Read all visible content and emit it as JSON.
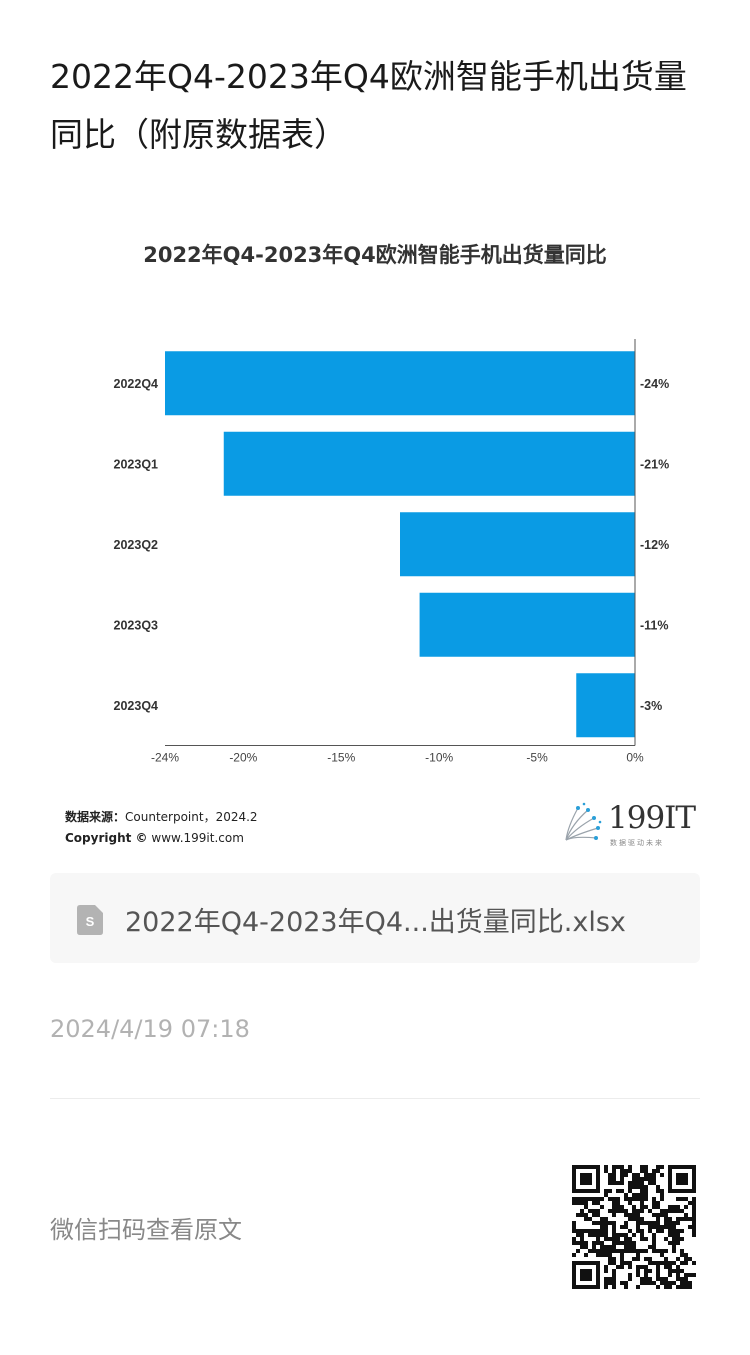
{
  "article": {
    "title": "2022年Q4-2023年Q4欧洲智能手机出货量同比（附原数据表）"
  },
  "chart_data": {
    "type": "bar",
    "orientation": "horizontal",
    "title": "2022年Q4-2023年Q4欧洲智能手机出货量同比",
    "categories": [
      "2022Q4",
      "2023Q1",
      "2023Q2",
      "2023Q3",
      "2023Q4"
    ],
    "values": [
      -24,
      -21,
      -12,
      -11,
      -3
    ],
    "value_labels": [
      "-24%",
      "-21%",
      "-12%",
      "-11%",
      "-3%"
    ],
    "x_ticks": [
      -24,
      -20,
      -15,
      -10,
      -5,
      0
    ],
    "x_tick_labels": [
      "-24%",
      "-20%",
      "-15%",
      "-10%",
      "-5%",
      "0%"
    ],
    "xlim": [
      -24,
      0
    ],
    "bar_color": "#0a9be4",
    "grid": false
  },
  "source": {
    "label": "数据来源：",
    "value": "Counterpoint，2024.2",
    "copyright_label": "Copyright ©",
    "copyright_value": "www.199it.com"
  },
  "brand": {
    "name": "199IT",
    "tagline": "数据驱动未来"
  },
  "attachment": {
    "icon": "spreadsheet-file-icon",
    "file_name": "2022年Q4-2023年Q4...出货量同比.xlsx"
  },
  "post": {
    "date": "2024/4/19 07:18"
  },
  "footer": {
    "qr_hint": "微信扫码查看原文",
    "qr_icon": "qr-code-icon"
  }
}
